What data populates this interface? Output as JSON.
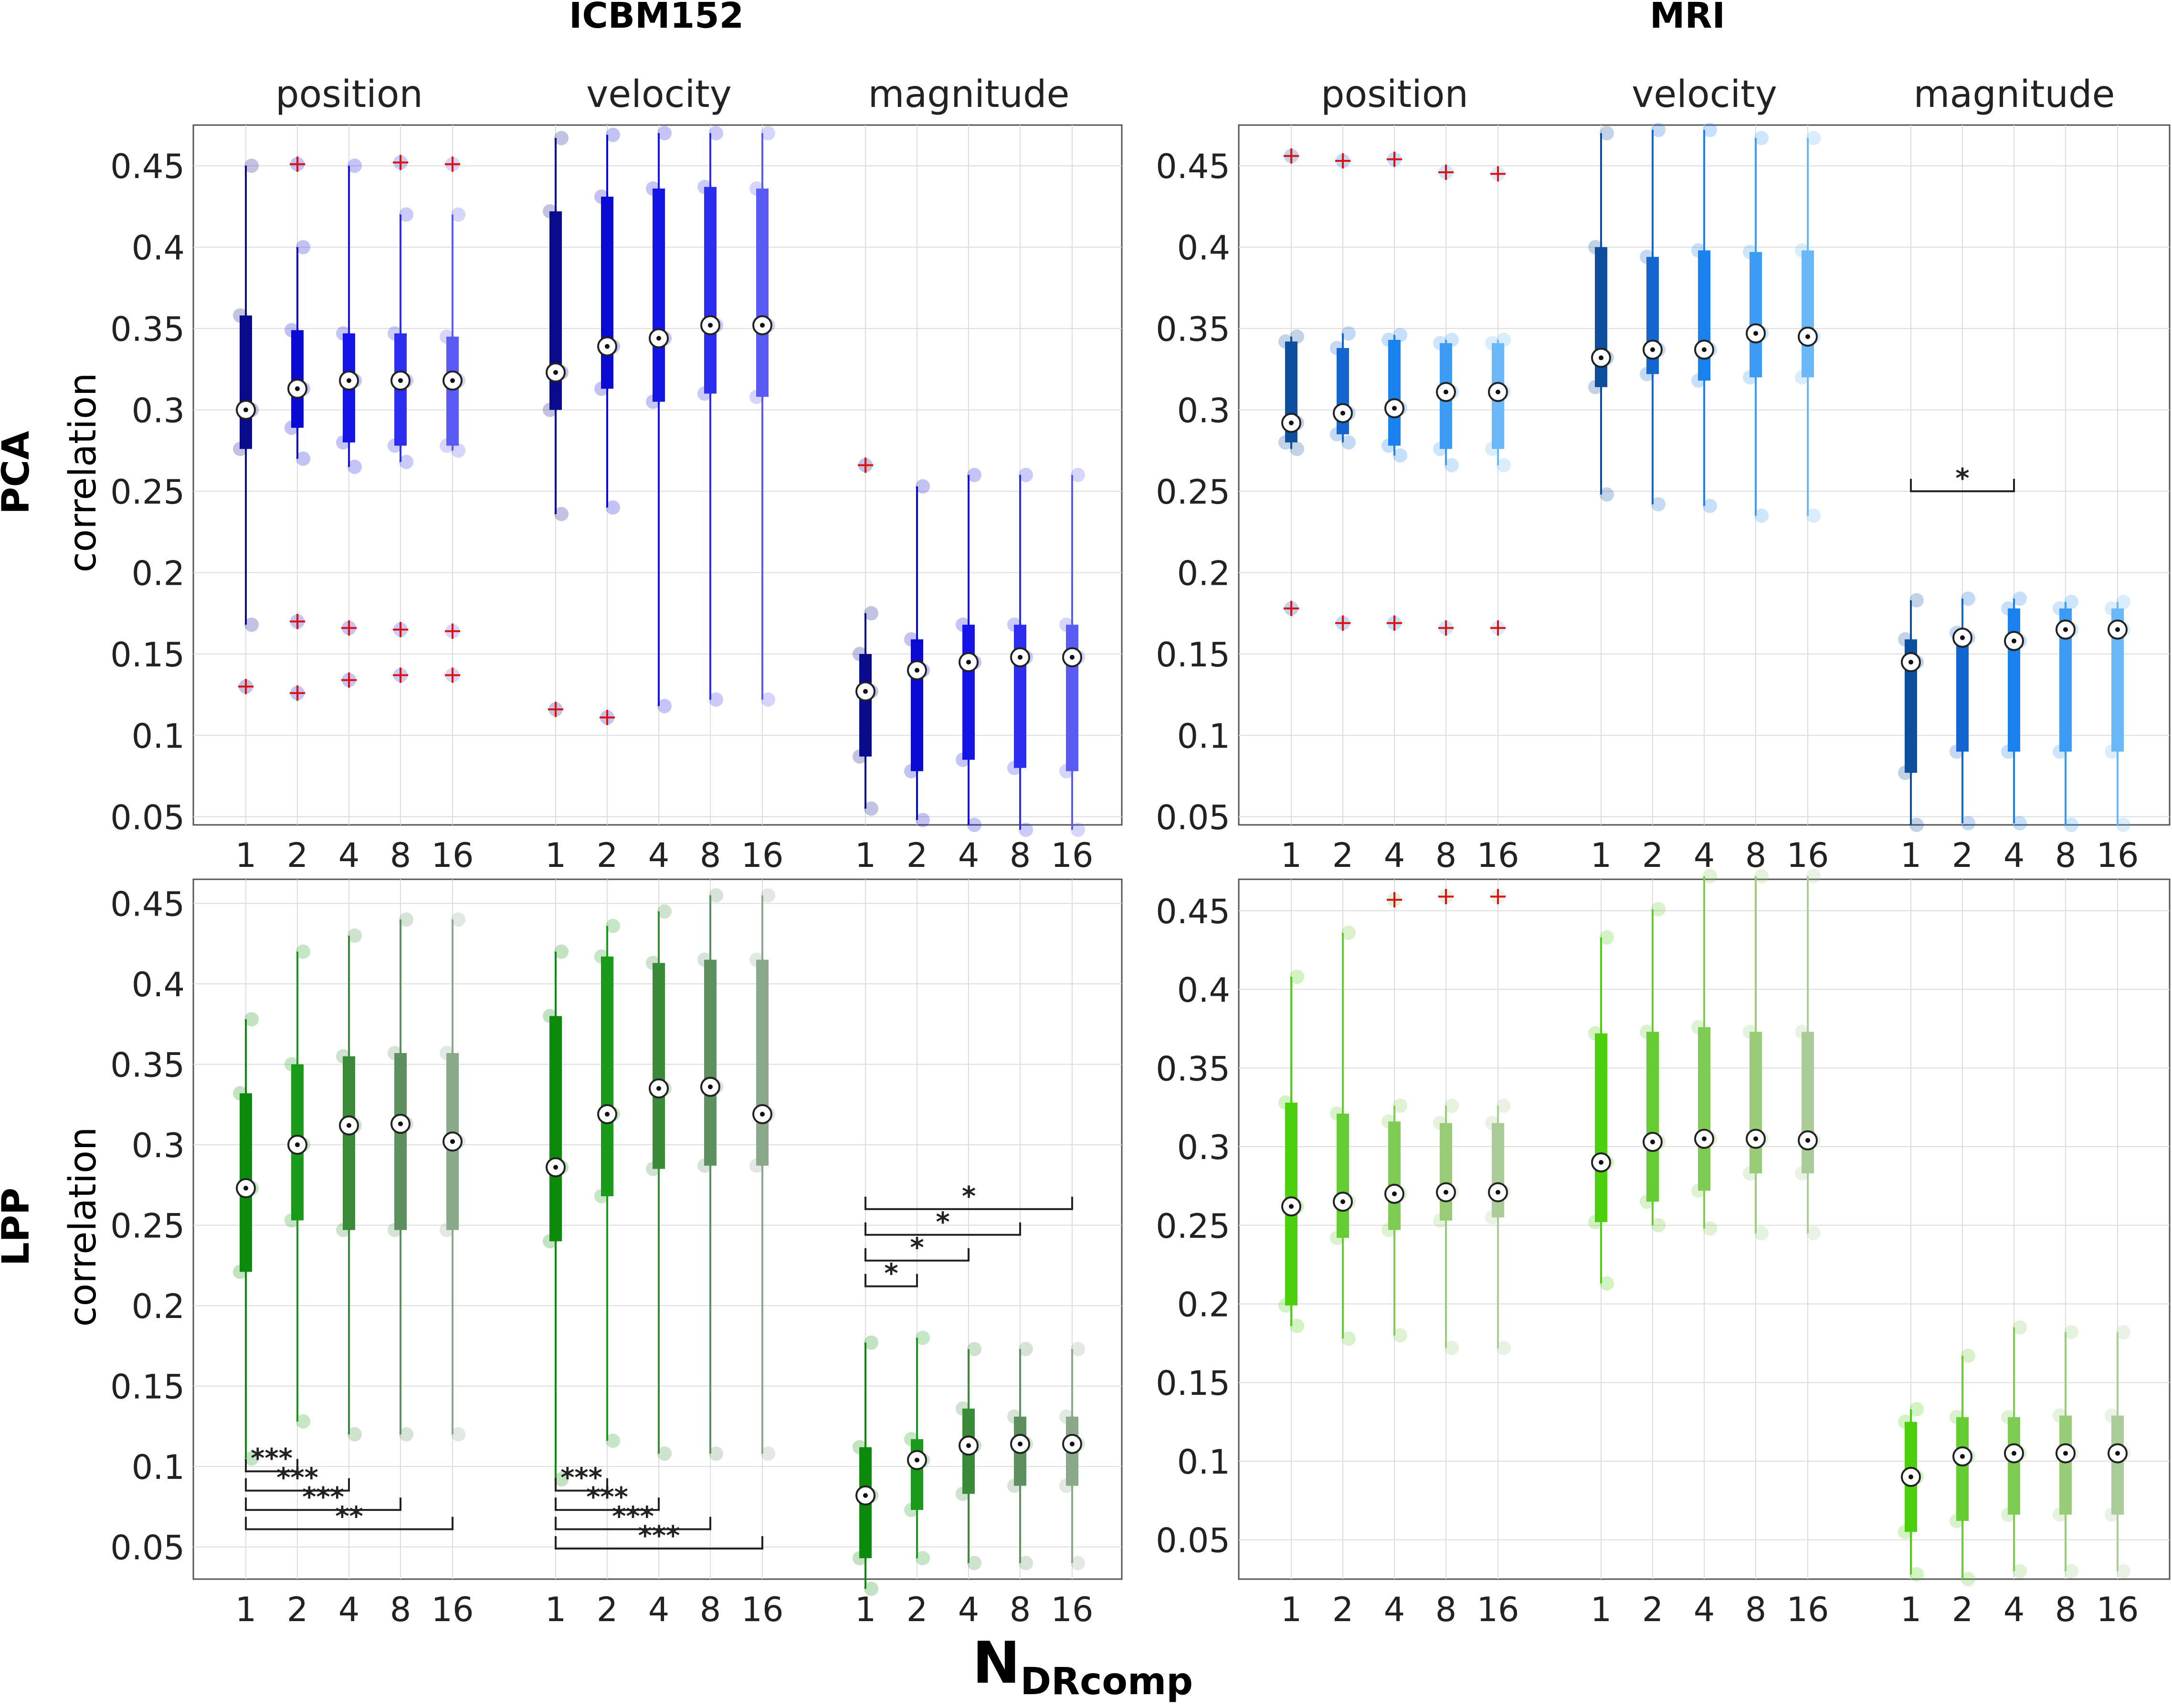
{
  "figure": {
    "col_titles": [
      "ICBM152",
      "MRI"
    ],
    "row_titles": [
      "PCA",
      "LPP"
    ],
    "ylabel": "correlation",
    "xlabel_main": "N",
    "xlabel_sub": "DRcomp"
  },
  "colors": {
    "PCA_ICBM152": [
      "#0a0a8c",
      "#0a0ad2",
      "#1414e6",
      "#2d2df0",
      "#5a5af5"
    ],
    "PCA_MRI": [
      "#0d4f9e",
      "#1366cf",
      "#1a82ee",
      "#3c9cf5",
      "#6bb8f8"
    ],
    "LPP_ICBM152": [
      "#0b8a0b",
      "#1a9a1a",
      "#3a8a3a",
      "#5e8f5e",
      "#8aa88a"
    ],
    "LPP_MRI": [
      "#4ccf0c",
      "#66cc33",
      "#7fcc55",
      "#99cc77",
      "#aacc99"
    ],
    "outlier": "#e01010",
    "grid": "#dddddd"
  },
  "chart_data": [
    {
      "type": "box",
      "panel": "PCA-ICBM152",
      "title": "ICBM152",
      "ylabel": "correlation",
      "ylim": [
        0.045,
        0.475
      ],
      "yticks": [
        0.05,
        0.1,
        0.15,
        0.2,
        0.25,
        0.3,
        0.35,
        0.4,
        0.45
      ],
      "group_labels": [
        "position",
        "velocity",
        "magnitude"
      ],
      "categories": [
        "1",
        "2",
        "4",
        "8",
        "16"
      ],
      "colors_key": "PCA_ICBM152",
      "groups": [
        {
          "name": "position",
          "boxes": [
            {
              "med": 0.3,
              "q1": 0.276,
              "q3": 0.358,
              "wlo": 0.168,
              "whi": 0.45,
              "out": [
                0.13
              ]
            },
            {
              "med": 0.313,
              "q1": 0.289,
              "q3": 0.349,
              "wlo": 0.27,
              "whi": 0.4,
              "out": [
                0.17,
                0.126,
                0.451
              ]
            },
            {
              "med": 0.318,
              "q1": 0.28,
              "q3": 0.347,
              "wlo": 0.265,
              "whi": 0.45,
              "out": [
                0.166,
                0.134
              ]
            },
            {
              "med": 0.318,
              "q1": 0.278,
              "q3": 0.347,
              "wlo": 0.268,
              "whi": 0.42,
              "out": [
                0.165,
                0.137,
                0.452
              ]
            },
            {
              "med": 0.318,
              "q1": 0.278,
              "q3": 0.345,
              "wlo": 0.275,
              "whi": 0.42,
              "out": [
                0.164,
                0.137,
                0.451
              ]
            }
          ]
        },
        {
          "name": "velocity",
          "boxes": [
            {
              "med": 0.323,
              "q1": 0.3,
              "q3": 0.422,
              "wlo": 0.236,
              "whi": 0.467,
              "out": [
                0.116
              ]
            },
            {
              "med": 0.339,
              "q1": 0.313,
              "q3": 0.431,
              "wlo": 0.24,
              "whi": 0.469,
              "out": [
                0.111
              ]
            },
            {
              "med": 0.344,
              "q1": 0.305,
              "q3": 0.436,
              "wlo": 0.118,
              "whi": 0.47,
              "out": []
            },
            {
              "med": 0.352,
              "q1": 0.31,
              "q3": 0.437,
              "wlo": 0.122,
              "whi": 0.47,
              "out": []
            },
            {
              "med": 0.352,
              "q1": 0.308,
              "q3": 0.436,
              "wlo": 0.122,
              "whi": 0.47,
              "out": []
            }
          ]
        },
        {
          "name": "magnitude",
          "boxes": [
            {
              "med": 0.127,
              "q1": 0.087,
              "q3": 0.15,
              "wlo": 0.055,
              "whi": 0.175,
              "out": [
                0.266
              ]
            },
            {
              "med": 0.14,
              "q1": 0.078,
              "q3": 0.159,
              "wlo": 0.048,
              "whi": 0.253,
              "out": []
            },
            {
              "med": 0.145,
              "q1": 0.085,
              "q3": 0.168,
              "wlo": 0.045,
              "whi": 0.26,
              "out": []
            },
            {
              "med": 0.148,
              "q1": 0.08,
              "q3": 0.168,
              "wlo": 0.042,
              "whi": 0.26,
              "out": []
            },
            {
              "med": 0.148,
              "q1": 0.078,
              "q3": 0.168,
              "wlo": 0.042,
              "whi": 0.26,
              "out": []
            }
          ]
        }
      ],
      "significance": []
    },
    {
      "type": "box",
      "panel": "PCA-MRI",
      "title": "MRI",
      "ylabel": "",
      "ylim": [
        0.045,
        0.475
      ],
      "yticks": [
        0.05,
        0.1,
        0.15,
        0.2,
        0.25,
        0.3,
        0.35,
        0.4,
        0.45
      ],
      "group_labels": [
        "position",
        "velocity",
        "magnitude"
      ],
      "categories": [
        "1",
        "2",
        "4",
        "8",
        "16"
      ],
      "colors_key": "PCA_MRI",
      "groups": [
        {
          "name": "position",
          "boxes": [
            {
              "med": 0.292,
              "q1": 0.28,
              "q3": 0.342,
              "wlo": 0.276,
              "whi": 0.345,
              "out": [
                0.456,
                0.178
              ]
            },
            {
              "med": 0.298,
              "q1": 0.285,
              "q3": 0.338,
              "wlo": 0.28,
              "whi": 0.347,
              "out": [
                0.453,
                0.169
              ]
            },
            {
              "med": 0.301,
              "q1": 0.278,
              "q3": 0.343,
              "wlo": 0.272,
              "whi": 0.346,
              "out": [
                0.454,
                0.169
              ]
            },
            {
              "med": 0.311,
              "q1": 0.276,
              "q3": 0.341,
              "wlo": 0.266,
              "whi": 0.343,
              "out": [
                0.446,
                0.166
              ]
            },
            {
              "med": 0.311,
              "q1": 0.276,
              "q3": 0.341,
              "wlo": 0.266,
              "whi": 0.343,
              "out": [
                0.445,
                0.166
              ]
            }
          ]
        },
        {
          "name": "velocity",
          "boxes": [
            {
              "med": 0.332,
              "q1": 0.314,
              "q3": 0.4,
              "wlo": 0.248,
              "whi": 0.47,
              "out": []
            },
            {
              "med": 0.337,
              "q1": 0.322,
              "q3": 0.394,
              "wlo": 0.242,
              "whi": 0.472,
              "out": []
            },
            {
              "med": 0.337,
              "q1": 0.318,
              "q3": 0.398,
              "wlo": 0.241,
              "whi": 0.472,
              "out": []
            },
            {
              "med": 0.347,
              "q1": 0.32,
              "q3": 0.397,
              "wlo": 0.235,
              "whi": 0.467,
              "out": []
            },
            {
              "med": 0.345,
              "q1": 0.32,
              "q3": 0.398,
              "wlo": 0.235,
              "whi": 0.467,
              "out": []
            }
          ]
        },
        {
          "name": "magnitude",
          "boxes": [
            {
              "med": 0.145,
              "q1": 0.077,
              "q3": 0.159,
              "wlo": 0.045,
              "whi": 0.183,
              "out": []
            },
            {
              "med": 0.16,
              "q1": 0.09,
              "q3": 0.163,
              "wlo": 0.046,
              "whi": 0.184,
              "out": []
            },
            {
              "med": 0.158,
              "q1": 0.09,
              "q3": 0.178,
              "wlo": 0.046,
              "whi": 0.184,
              "out": []
            },
            {
              "med": 0.165,
              "q1": 0.09,
              "q3": 0.178,
              "wlo": 0.045,
              "whi": 0.182,
              "out": []
            },
            {
              "med": 0.165,
              "q1": 0.09,
              "q3": 0.178,
              "wlo": 0.045,
              "whi": 0.182,
              "out": []
            }
          ]
        }
      ],
      "significance": [
        {
          "group": 2,
          "from": 0,
          "to": 2,
          "y": 0.25,
          "label": "*"
        }
      ]
    },
    {
      "type": "box",
      "panel": "LPP-ICBM152",
      "title": "",
      "ylabel": "correlation",
      "ylim": [
        0.03,
        0.465
      ],
      "yticks": [
        0.05,
        0.1,
        0.15,
        0.2,
        0.25,
        0.3,
        0.35,
        0.4,
        0.45
      ],
      "group_labels": [
        "",
        "",
        ""
      ],
      "categories": [
        "1",
        "2",
        "4",
        "8",
        "16"
      ],
      "colors_key": "LPP_ICBM152",
      "groups": [
        {
          "name": "position",
          "boxes": [
            {
              "med": 0.273,
              "q1": 0.221,
              "q3": 0.332,
              "wlo": 0.105,
              "whi": 0.378,
              "out": []
            },
            {
              "med": 0.3,
              "q1": 0.253,
              "q3": 0.35,
              "wlo": 0.128,
              "whi": 0.42,
              "out": []
            },
            {
              "med": 0.312,
              "q1": 0.247,
              "q3": 0.355,
              "wlo": 0.12,
              "whi": 0.43,
              "out": []
            },
            {
              "med": 0.313,
              "q1": 0.247,
              "q3": 0.357,
              "wlo": 0.12,
              "whi": 0.44,
              "out": []
            },
            {
              "med": 0.302,
              "q1": 0.247,
              "q3": 0.357,
              "wlo": 0.12,
              "whi": 0.44,
              "out": []
            }
          ]
        },
        {
          "name": "velocity",
          "boxes": [
            {
              "med": 0.286,
              "q1": 0.24,
              "q3": 0.38,
              "wlo": 0.092,
              "whi": 0.42,
              "out": []
            },
            {
              "med": 0.319,
              "q1": 0.268,
              "q3": 0.417,
              "wlo": 0.116,
              "whi": 0.436,
              "out": []
            },
            {
              "med": 0.335,
              "q1": 0.285,
              "q3": 0.413,
              "wlo": 0.108,
              "whi": 0.445,
              "out": []
            },
            {
              "med": 0.336,
              "q1": 0.287,
              "q3": 0.415,
              "wlo": 0.108,
              "whi": 0.455,
              "out": []
            },
            {
              "med": 0.319,
              "q1": 0.287,
              "q3": 0.415,
              "wlo": 0.108,
              "whi": 0.455,
              "out": []
            }
          ]
        },
        {
          "name": "magnitude",
          "boxes": [
            {
              "med": 0.082,
              "q1": 0.043,
              "q3": 0.112,
              "wlo": 0.024,
              "whi": 0.177,
              "out": []
            },
            {
              "med": 0.104,
              "q1": 0.073,
              "q3": 0.117,
              "wlo": 0.043,
              "whi": 0.18,
              "out": []
            },
            {
              "med": 0.113,
              "q1": 0.083,
              "q3": 0.136,
              "wlo": 0.04,
              "whi": 0.173,
              "out": []
            },
            {
              "med": 0.114,
              "q1": 0.088,
              "q3": 0.131,
              "wlo": 0.04,
              "whi": 0.173,
              "out": []
            },
            {
              "med": 0.114,
              "q1": 0.088,
              "q3": 0.131,
              "wlo": 0.04,
              "whi": 0.173,
              "out": []
            }
          ]
        }
      ],
      "significance": [
        {
          "group": 0,
          "from": 0,
          "to": 1,
          "y": 0.097,
          "label": "***"
        },
        {
          "group": 0,
          "from": 0,
          "to": 2,
          "y": 0.085,
          "label": "***"
        },
        {
          "group": 0,
          "from": 0,
          "to": 3,
          "y": 0.073,
          "label": "***"
        },
        {
          "group": 0,
          "from": 0,
          "to": 4,
          "y": 0.061,
          "label": "**"
        },
        {
          "group": 1,
          "from": 0,
          "to": 1,
          "y": 0.085,
          "label": "***"
        },
        {
          "group": 1,
          "from": 0,
          "to": 2,
          "y": 0.073,
          "label": "***"
        },
        {
          "group": 1,
          "from": 0,
          "to": 3,
          "y": 0.061,
          "label": "***"
        },
        {
          "group": 1,
          "from": 0,
          "to": 4,
          "y": 0.049,
          "label": "***"
        },
        {
          "group": 2,
          "from": 0,
          "to": 1,
          "y": 0.212,
          "label": "*"
        },
        {
          "group": 2,
          "from": 0,
          "to": 2,
          "y": 0.228,
          "label": "*"
        },
        {
          "group": 2,
          "from": 0,
          "to": 3,
          "y": 0.244,
          "label": "*"
        },
        {
          "group": 2,
          "from": 0,
          "to": 4,
          "y": 0.26,
          "label": "*"
        }
      ]
    },
    {
      "type": "box",
      "panel": "LPP-MRI",
      "title": "",
      "ylabel": "",
      "ylim": [
        0.025,
        0.47
      ],
      "yticks": [
        0.05,
        0.1,
        0.15,
        0.2,
        0.25,
        0.3,
        0.35,
        0.4,
        0.45
      ],
      "group_labels": [
        "",
        "",
        ""
      ],
      "categories": [
        "1",
        "2",
        "4",
        "8",
        "16"
      ],
      "colors_key": "LPP_MRI",
      "groups": [
        {
          "name": "position",
          "boxes": [
            {
              "med": 0.262,
              "q1": 0.199,
              "q3": 0.328,
              "wlo": 0.186,
              "whi": 0.408,
              "out": []
            },
            {
              "med": 0.265,
              "q1": 0.242,
              "q3": 0.321,
              "wlo": 0.178,
              "whi": 0.436,
              "out": []
            },
            {
              "med": 0.27,
              "q1": 0.247,
              "q3": 0.316,
              "wlo": 0.18,
              "whi": 0.326,
              "out": [
                0.457
              ]
            },
            {
              "med": 0.271,
              "q1": 0.253,
              "q3": 0.315,
              "wlo": 0.172,
              "whi": 0.326,
              "out": [
                0.459
              ]
            },
            {
              "med": 0.271,
              "q1": 0.255,
              "q3": 0.315,
              "wlo": 0.172,
              "whi": 0.326,
              "out": [
                0.459
              ]
            }
          ]
        },
        {
          "name": "velocity",
          "boxes": [
            {
              "med": 0.29,
              "q1": 0.252,
              "q3": 0.372,
              "wlo": 0.213,
              "whi": 0.433,
              "out": []
            },
            {
              "med": 0.303,
              "q1": 0.265,
              "q3": 0.373,
              "wlo": 0.25,
              "whi": 0.451,
              "out": []
            },
            {
              "med": 0.305,
              "q1": 0.272,
              "q3": 0.376,
              "wlo": 0.248,
              "whi": 0.472,
              "out": []
            },
            {
              "med": 0.305,
              "q1": 0.283,
              "q3": 0.373,
              "wlo": 0.245,
              "whi": 0.472,
              "out": []
            },
            {
              "med": 0.304,
              "q1": 0.283,
              "q3": 0.373,
              "wlo": 0.245,
              "whi": 0.472,
              "out": []
            }
          ]
        },
        {
          "name": "magnitude",
          "boxes": [
            {
              "med": 0.09,
              "q1": 0.055,
              "q3": 0.125,
              "wlo": 0.028,
              "whi": 0.133,
              "out": []
            },
            {
              "med": 0.103,
              "q1": 0.062,
              "q3": 0.128,
              "wlo": 0.025,
              "whi": 0.167,
              "out": []
            },
            {
              "med": 0.105,
              "q1": 0.066,
              "q3": 0.128,
              "wlo": 0.03,
              "whi": 0.185,
              "out": []
            },
            {
              "med": 0.105,
              "q1": 0.066,
              "q3": 0.129,
              "wlo": 0.03,
              "whi": 0.182,
              "out": []
            },
            {
              "med": 0.105,
              "q1": 0.066,
              "q3": 0.129,
              "wlo": 0.03,
              "whi": 0.182,
              "out": []
            }
          ]
        }
      ],
      "significance": []
    }
  ]
}
